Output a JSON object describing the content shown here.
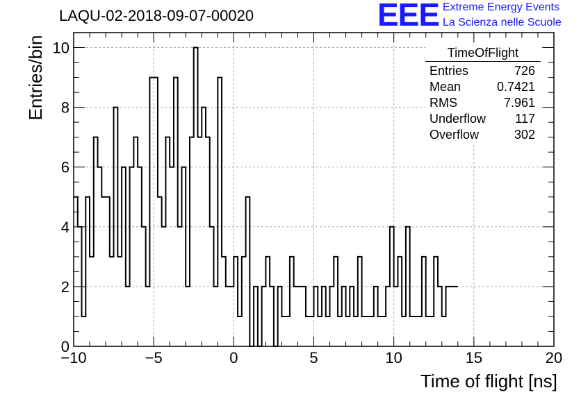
{
  "title": "LAQU-02-2018-09-07-00020",
  "logo": {
    "mark": "EEE",
    "line1": "Extreme Energy Events",
    "line2": "La Scienza nelle Scuole",
    "color": "#1a1aff"
  },
  "stats": {
    "title": "TimeOfFlight",
    "rows": [
      {
        "label": "Entries",
        "value": "726"
      },
      {
        "label": "Mean",
        "value": "0.7421"
      },
      {
        "label": "RMS",
        "value": "7.961"
      },
      {
        "label": "Underflow",
        "value": "117"
      },
      {
        "label": "Overflow",
        "value": "302"
      }
    ]
  },
  "chart_data": {
    "type": "histogram",
    "xlabel": "Time of flight [ns]",
    "ylabel": "Entries/bin",
    "xlim": [
      -10,
      20
    ],
    "ylim": [
      0,
      10.5
    ],
    "xticks": [
      -10,
      -5,
      0,
      5,
      10,
      15,
      20
    ],
    "xtick_labels": [
      "−10",
      "−5",
      "0",
      "5",
      "10",
      "15",
      "20"
    ],
    "yticks": [
      0,
      2,
      4,
      6,
      8,
      10
    ],
    "grid": true,
    "bin_width": 0.25,
    "values": [
      5,
      4,
      1,
      5,
      3,
      7,
      6,
      5,
      5,
      3,
      8,
      3,
      6,
      2,
      6,
      7,
      6,
      4,
      2,
      9,
      9,
      5,
      4,
      7,
      6,
      9,
      4,
      6,
      2,
      7,
      10,
      7,
      8,
      7,
      4,
      2,
      9,
      3,
      2,
      2,
      3,
      1,
      3,
      5,
      0,
      2,
      0,
      2,
      3,
      2,
      0,
      2,
      1,
      1,
      3,
      2,
      2,
      2,
      1,
      1,
      2,
      1,
      2,
      1,
      2,
      3,
      1,
      2,
      1,
      2,
      1,
      3,
      1,
      1,
      1,
      2,
      1,
      1,
      2,
      4,
      2,
      3,
      1,
      4,
      1,
      1,
      1,
      3,
      1,
      1,
      3,
      2,
      1,
      2,
      2,
      2
    ]
  }
}
